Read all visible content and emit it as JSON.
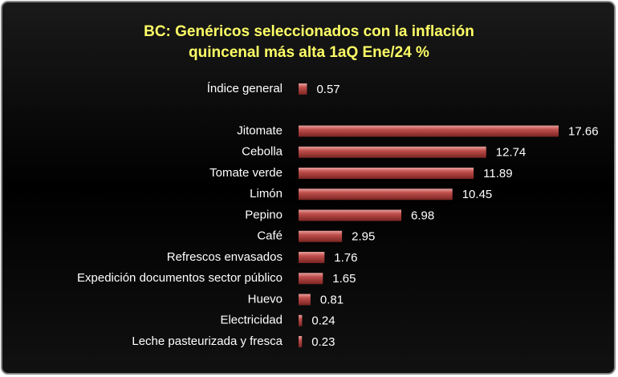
{
  "chart_data": {
    "type": "bar",
    "orientation": "horizontal",
    "title": [
      "BC: Genéricos seleccionados con la inflación",
      "quincenal más alta 1aQ Ene/24 %"
    ],
    "categories": [
      "Índice general",
      null,
      "Jitomate",
      "Cebolla",
      "Tomate verde",
      "Limón",
      "Pepino",
      "Café",
      "Refrescos envasados",
      "Expedición documentos sector público",
      "Huevo",
      "Electricidad",
      "Leche pasteurizada y fresca"
    ],
    "values": [
      0.57,
      null,
      17.66,
      12.74,
      11.89,
      10.45,
      6.98,
      2.95,
      1.76,
      1.65,
      0.81,
      0.24,
      0.23
    ],
    "color": "#c0504d"
  }
}
